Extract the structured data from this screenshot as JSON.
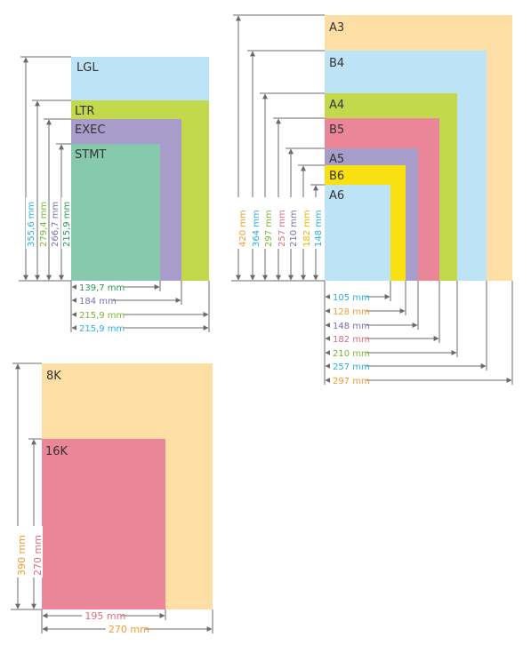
{
  "groups": {
    "letter": {
      "papers": [
        {
          "label": "LGL",
          "color": "#bde3f6"
        },
        {
          "label": "LTR",
          "color": "#c3d94c"
        },
        {
          "label": "EXEC",
          "color": "#a79cca"
        },
        {
          "label": "STMT",
          "color": "#86c9ad"
        }
      ],
      "heights": [
        {
          "text": "355,6 mm",
          "color": "#29aee1"
        },
        {
          "text": "279,4 mm",
          "color": "#7bb62e"
        },
        {
          "text": "266,7 mm",
          "color": "#7a6fb1"
        },
        {
          "text": "215,9 mm",
          "color": "#239a55"
        }
      ],
      "widths": [
        {
          "text": "139,7 mm",
          "color": "#239a55"
        },
        {
          "text": "184 mm",
          "color": "#7a6fb1"
        },
        {
          "text": "215,9 mm",
          "color": "#7bb62e"
        },
        {
          "text": "215,9 mm",
          "color": "#29aee1"
        }
      ]
    },
    "iso": {
      "papers": [
        {
          "label": "A3",
          "color": "#fddea4"
        },
        {
          "label": "B4",
          "color": "#bde3f6"
        },
        {
          "label": "A4",
          "color": "#c3d94c"
        },
        {
          "label": "B5",
          "color": "#ea8698"
        },
        {
          "label": "A5",
          "color": "#a79cca"
        },
        {
          "label": "B6",
          "color": "#f9e010"
        },
        {
          "label": "A6",
          "color": "#bde3f6"
        }
      ],
      "heights": [
        {
          "text": "420 mm",
          "color": "#f39c32"
        },
        {
          "text": "364 mm",
          "color": "#29aee1"
        },
        {
          "text": "297 mm",
          "color": "#7bb62e"
        },
        {
          "text": "257 mm",
          "color": "#e26a7f"
        },
        {
          "text": "210 mm",
          "color": "#7a6fb1"
        },
        {
          "text": "182 mm",
          "color": "#f0b400"
        },
        {
          "text": "148 mm",
          "color": "#29aee1"
        }
      ],
      "widths": [
        {
          "text": "105 mm",
          "color": "#29aee1"
        },
        {
          "text": "128 mm",
          "color": "#f39c32"
        },
        {
          "text": "148 mm",
          "color": "#7a6fb1"
        },
        {
          "text": "182 mm",
          "color": "#e26a7f"
        },
        {
          "text": "210 mm",
          "color": "#7bb62e"
        },
        {
          "text": "257 mm",
          "color": "#29aee1"
        },
        {
          "text": "297 mm",
          "color": "#f39c32"
        }
      ]
    },
    "chinese": {
      "papers": [
        {
          "label": "8K",
          "color": "#fddea4"
        },
        {
          "label": "16K",
          "color": "#ea8698"
        }
      ],
      "heights": [
        {
          "text": "390 mm",
          "color": "#f39c32"
        },
        {
          "text": "270 mm",
          "color": "#e26a7f"
        }
      ],
      "widths": [
        {
          "text": "195 mm",
          "color": "#e26a7f"
        },
        {
          "text": "270 mm",
          "color": "#f39c32"
        }
      ]
    }
  },
  "arrow_color": "#6b6b6b"
}
